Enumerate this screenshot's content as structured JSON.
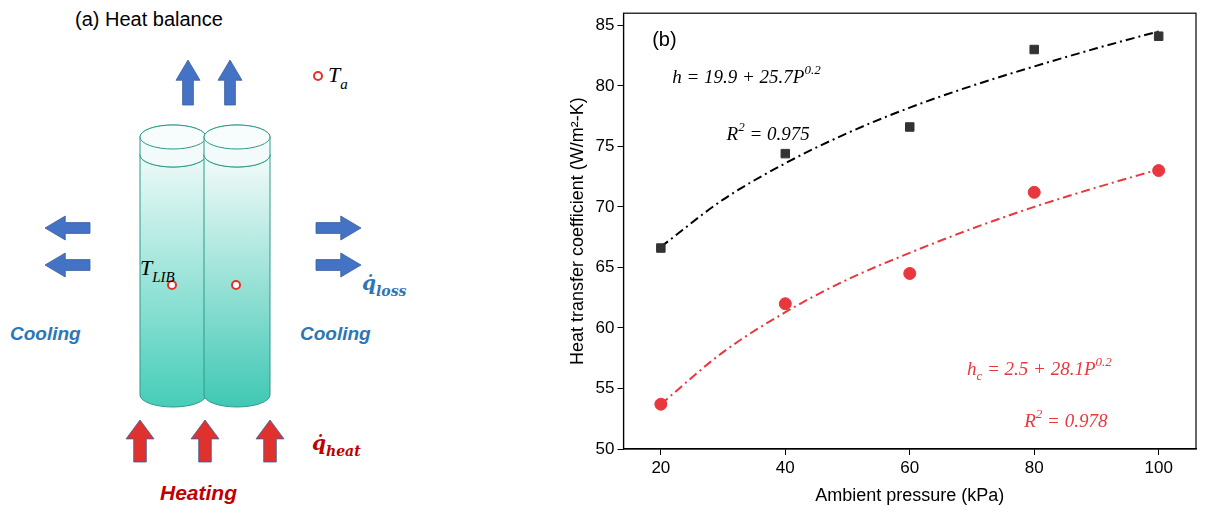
{
  "diagram": {
    "title": "(a) Heat balance",
    "labels": {
      "ambient": {
        "text": "T",
        "subscript": "a"
      },
      "battery": {
        "text": "T",
        "subscript": "LIB"
      },
      "loss": {
        "text": "q̇",
        "subscript": "loss"
      },
      "heat": {
        "text": "q̇",
        "subscript": "heat"
      },
      "cooling_left": "Cooling",
      "cooling_right": "Cooling",
      "heating": "Heating"
    }
  },
  "chart_data": {
    "type": "scatter",
    "panel_label": "(b)",
    "x_label": "Ambient pressure (kPa)",
    "y_label": "Heat transfer coefficient (W/m²-K)",
    "xlim": [
      14,
      106
    ],
    "xticks": [
      20,
      40,
      60,
      80,
      100
    ],
    "ylim": [
      50,
      86
    ],
    "yticks": [
      50,
      55,
      60,
      65,
      70,
      75,
      80,
      85
    ],
    "grid": false,
    "series": [
      {
        "type": "scatter",
        "marker": "square",
        "color": "#333333",
        "x": [
          20,
          40,
          60,
          80,
          100
        ],
        "values": [
          66.6,
          74.4,
          76.6,
          83.0,
          84.1
        ]
      },
      {
        "type": "scatter",
        "marker": "circle",
        "color": "#e8383d",
        "x": [
          20,
          40,
          60,
          80,
          100
        ],
        "values": [
          53.7,
          62.0,
          64.5,
          71.2,
          73.0
        ]
      },
      {
        "type": "line",
        "line_style": "dashdot",
        "color": "#000000",
        "x": [
          20,
          30,
          40,
          50,
          60,
          70,
          80,
          90,
          100
        ],
        "values": [
          66.7,
          70.6,
          73.6,
          76.1,
          78.2,
          80.0,
          81.6,
          83.1,
          84.5
        ]
      },
      {
        "type": "line",
        "line_style": "dashdot",
        "color": "#e8383d",
        "x": [
          20,
          30,
          40,
          50,
          60,
          70,
          80,
          90,
          100
        ],
        "values": [
          53.7,
          58.0,
          61.3,
          64.0,
          66.2,
          68.2,
          70.0,
          71.6,
          73.1
        ]
      }
    ],
    "annotations": [
      [
        {
          "text": "h = 19.9 + 25.7P"
        },
        {
          "sup": "0.2"
        }
      ],
      [
        {
          "text": "R"
        },
        {
          "sup": "2"
        },
        {
          "text": " = 0.975"
        }
      ],
      [
        {
          "text": "h"
        },
        {
          "sub": "c"
        },
        {
          "text": " = 2.5 + 28.1P"
        },
        {
          "sup": "0.2"
        }
      ],
      [
        {
          "text": "R"
        },
        {
          "sup": "2"
        },
        {
          "text": " = 0.978"
        }
      ]
    ]
  }
}
